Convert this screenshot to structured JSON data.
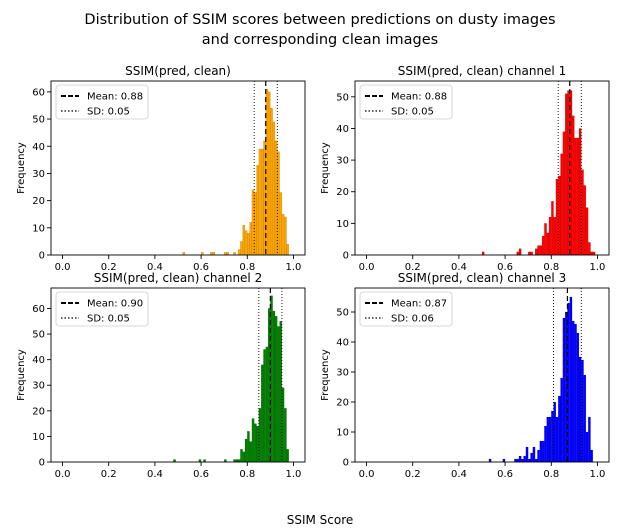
{
  "figure": {
    "suptitle_line1": "Distribution of SSIM scores between predictions on dusty images",
    "suptitle_line2": "and corresponding clean images",
    "xlabel": "SSIM Score"
  },
  "chart_data": [
    {
      "type": "bar",
      "title": "SSIM(pred, clean)",
      "ylabel": "Frequency",
      "xlabel": "",
      "color": "#ffa500",
      "xlim": [
        -0.05,
        1.05
      ],
      "ylim": [
        0,
        64
      ],
      "xticks": [
        "0.0",
        "0.2",
        "0.4",
        "0.6",
        "0.8",
        "1.0"
      ],
      "yticks": [
        0,
        10,
        20,
        30,
        40,
        50,
        60
      ],
      "bin_width": 0.01,
      "bins": [
        [
          0.52,
          1
        ],
        [
          0.6,
          1
        ],
        [
          0.64,
          1
        ],
        [
          0.65,
          1
        ],
        [
          0.7,
          1
        ],
        [
          0.71,
          1
        ],
        [
          0.74,
          1
        ],
        [
          0.76,
          2
        ],
        [
          0.77,
          5
        ],
        [
          0.78,
          11
        ],
        [
          0.79,
          9
        ],
        [
          0.8,
          8
        ],
        [
          0.81,
          12
        ],
        [
          0.82,
          24
        ],
        [
          0.83,
          23
        ],
        [
          0.84,
          33
        ],
        [
          0.85,
          39
        ],
        [
          0.86,
          39
        ],
        [
          0.87,
          42
        ],
        [
          0.88,
          61
        ],
        [
          0.89,
          60
        ],
        [
          0.9,
          54
        ],
        [
          0.91,
          49
        ],
        [
          0.92,
          42
        ],
        [
          0.93,
          38
        ],
        [
          0.94,
          23
        ],
        [
          0.95,
          15
        ],
        [
          0.96,
          14
        ],
        [
          0.97,
          4
        ]
      ],
      "mean": 0.88,
      "sd": 0.05,
      "legend": [
        {
          "label": "Mean: 0.88",
          "style": "dashed"
        },
        {
          "label": "SD: 0.05",
          "style": "dotted"
        }
      ],
      "legend_position": "upper left"
    },
    {
      "type": "bar",
      "title": "SSIM(pred, clean) channel 1",
      "ylabel": "Frequency",
      "xlabel": "",
      "color": "#ff0000",
      "xlim": [
        -0.05,
        1.05
      ],
      "ylim": [
        0,
        55
      ],
      "xticks": [
        "0.0",
        "0.2",
        "0.4",
        "0.6",
        "0.8",
        "1.0"
      ],
      "yticks": [
        0,
        10,
        20,
        30,
        40,
        50
      ],
      "bin_width": 0.01,
      "bins": [
        [
          0.5,
          1
        ],
        [
          0.65,
          1
        ],
        [
          0.66,
          2
        ],
        [
          0.7,
          1
        ],
        [
          0.71,
          1
        ],
        [
          0.73,
          2
        ],
        [
          0.74,
          3
        ],
        [
          0.75,
          3
        ],
        [
          0.76,
          6
        ],
        [
          0.77,
          10
        ],
        [
          0.78,
          7
        ],
        [
          0.79,
          12
        ],
        [
          0.8,
          17
        ],
        [
          0.81,
          12
        ],
        [
          0.82,
          24
        ],
        [
          0.83,
          25
        ],
        [
          0.84,
          32
        ],
        [
          0.85,
          39
        ],
        [
          0.86,
          51
        ],
        [
          0.87,
          52
        ],
        [
          0.88,
          52
        ],
        [
          0.89,
          44
        ],
        [
          0.9,
          37
        ],
        [
          0.91,
          37
        ],
        [
          0.92,
          40
        ],
        [
          0.93,
          27
        ],
        [
          0.94,
          22
        ],
        [
          0.95,
          15
        ],
        [
          0.96,
          4
        ],
        [
          0.97,
          1
        ],
        [
          0.98,
          1
        ]
      ],
      "mean": 0.88,
      "sd": 0.05,
      "legend": [
        {
          "label": "Mean: 0.88",
          "style": "dashed"
        },
        {
          "label": "SD: 0.05",
          "style": "dotted"
        }
      ],
      "legend_position": "upper left"
    },
    {
      "type": "bar",
      "title": "SSIM(pred, clean) channel 2",
      "ylabel": "Frequency",
      "xlabel": "",
      "color": "#008000",
      "xlim": [
        -0.05,
        1.05
      ],
      "ylim": [
        0,
        68
      ],
      "xticks": [
        "0.0",
        "0.2",
        "0.4",
        "0.6",
        "0.8",
        "1.0"
      ],
      "yticks": [
        0,
        10,
        20,
        30,
        40,
        50,
        60
      ],
      "bin_width": 0.01,
      "bins": [
        [
          0.48,
          1
        ],
        [
          0.59,
          1
        ],
        [
          0.61,
          1
        ],
        [
          0.7,
          1
        ],
        [
          0.74,
          1
        ],
        [
          0.75,
          1
        ],
        [
          0.76,
          1
        ],
        [
          0.77,
          5
        ],
        [
          0.78,
          4
        ],
        [
          0.79,
          9
        ],
        [
          0.8,
          12
        ],
        [
          0.81,
          8
        ],
        [
          0.82,
          17
        ],
        [
          0.83,
          15
        ],
        [
          0.84,
          14
        ],
        [
          0.85,
          21
        ],
        [
          0.86,
          38
        ],
        [
          0.87,
          44
        ],
        [
          0.88,
          45
        ],
        [
          0.89,
          60
        ],
        [
          0.9,
          65
        ],
        [
          0.91,
          59
        ],
        [
          0.92,
          57
        ],
        [
          0.93,
          53
        ],
        [
          0.94,
          55
        ],
        [
          0.95,
          29
        ],
        [
          0.96,
          21
        ],
        [
          0.97,
          5
        ]
      ],
      "mean": 0.9,
      "sd": 0.05,
      "legend": [
        {
          "label": "Mean: 0.90",
          "style": "dashed"
        },
        {
          "label": "SD: 0.05",
          "style": "dotted"
        }
      ],
      "legend_position": "upper left"
    },
    {
      "type": "bar",
      "title": "SSIM(pred, clean) channel 3",
      "ylabel": "Frequency",
      "xlabel": "",
      "color": "#0000ff",
      "xlim": [
        -0.05,
        1.05
      ],
      "ylim": [
        0,
        58
      ],
      "xticks": [
        "0.0",
        "0.2",
        "0.4",
        "0.6",
        "0.8",
        "1.0"
      ],
      "yticks": [
        0,
        10,
        20,
        30,
        40,
        50
      ],
      "bin_width": 0.01,
      "bins": [
        [
          0.53,
          1
        ],
        [
          0.59,
          1
        ],
        [
          0.64,
          1
        ],
        [
          0.65,
          1
        ],
        [
          0.66,
          2
        ],
        [
          0.67,
          1
        ],
        [
          0.68,
          2
        ],
        [
          0.69,
          5
        ],
        [
          0.7,
          1
        ],
        [
          0.71,
          3
        ],
        [
          0.72,
          5
        ],
        [
          0.73,
          1
        ],
        [
          0.74,
          4
        ],
        [
          0.75,
          7
        ],
        [
          0.76,
          7
        ],
        [
          0.77,
          12
        ],
        [
          0.78,
          15
        ],
        [
          0.79,
          15
        ],
        [
          0.8,
          17
        ],
        [
          0.81,
          20
        ],
        [
          0.82,
          15
        ],
        [
          0.83,
          22
        ],
        [
          0.84,
          28
        ],
        [
          0.85,
          48
        ],
        [
          0.86,
          50
        ],
        [
          0.87,
          53
        ],
        [
          0.88,
          55
        ],
        [
          0.89,
          47
        ],
        [
          0.9,
          46
        ],
        [
          0.91,
          43
        ],
        [
          0.92,
          35
        ],
        [
          0.93,
          34
        ],
        [
          0.94,
          29
        ],
        [
          0.95,
          10
        ],
        [
          0.96,
          15
        ],
        [
          0.97,
          4
        ]
      ],
      "mean": 0.87,
      "sd": 0.06,
      "legend": [
        {
          "label": "Mean: 0.87",
          "style": "dashed"
        },
        {
          "label": "SD: 0.06",
          "style": "dotted"
        }
      ],
      "legend_position": "upper left"
    }
  ]
}
